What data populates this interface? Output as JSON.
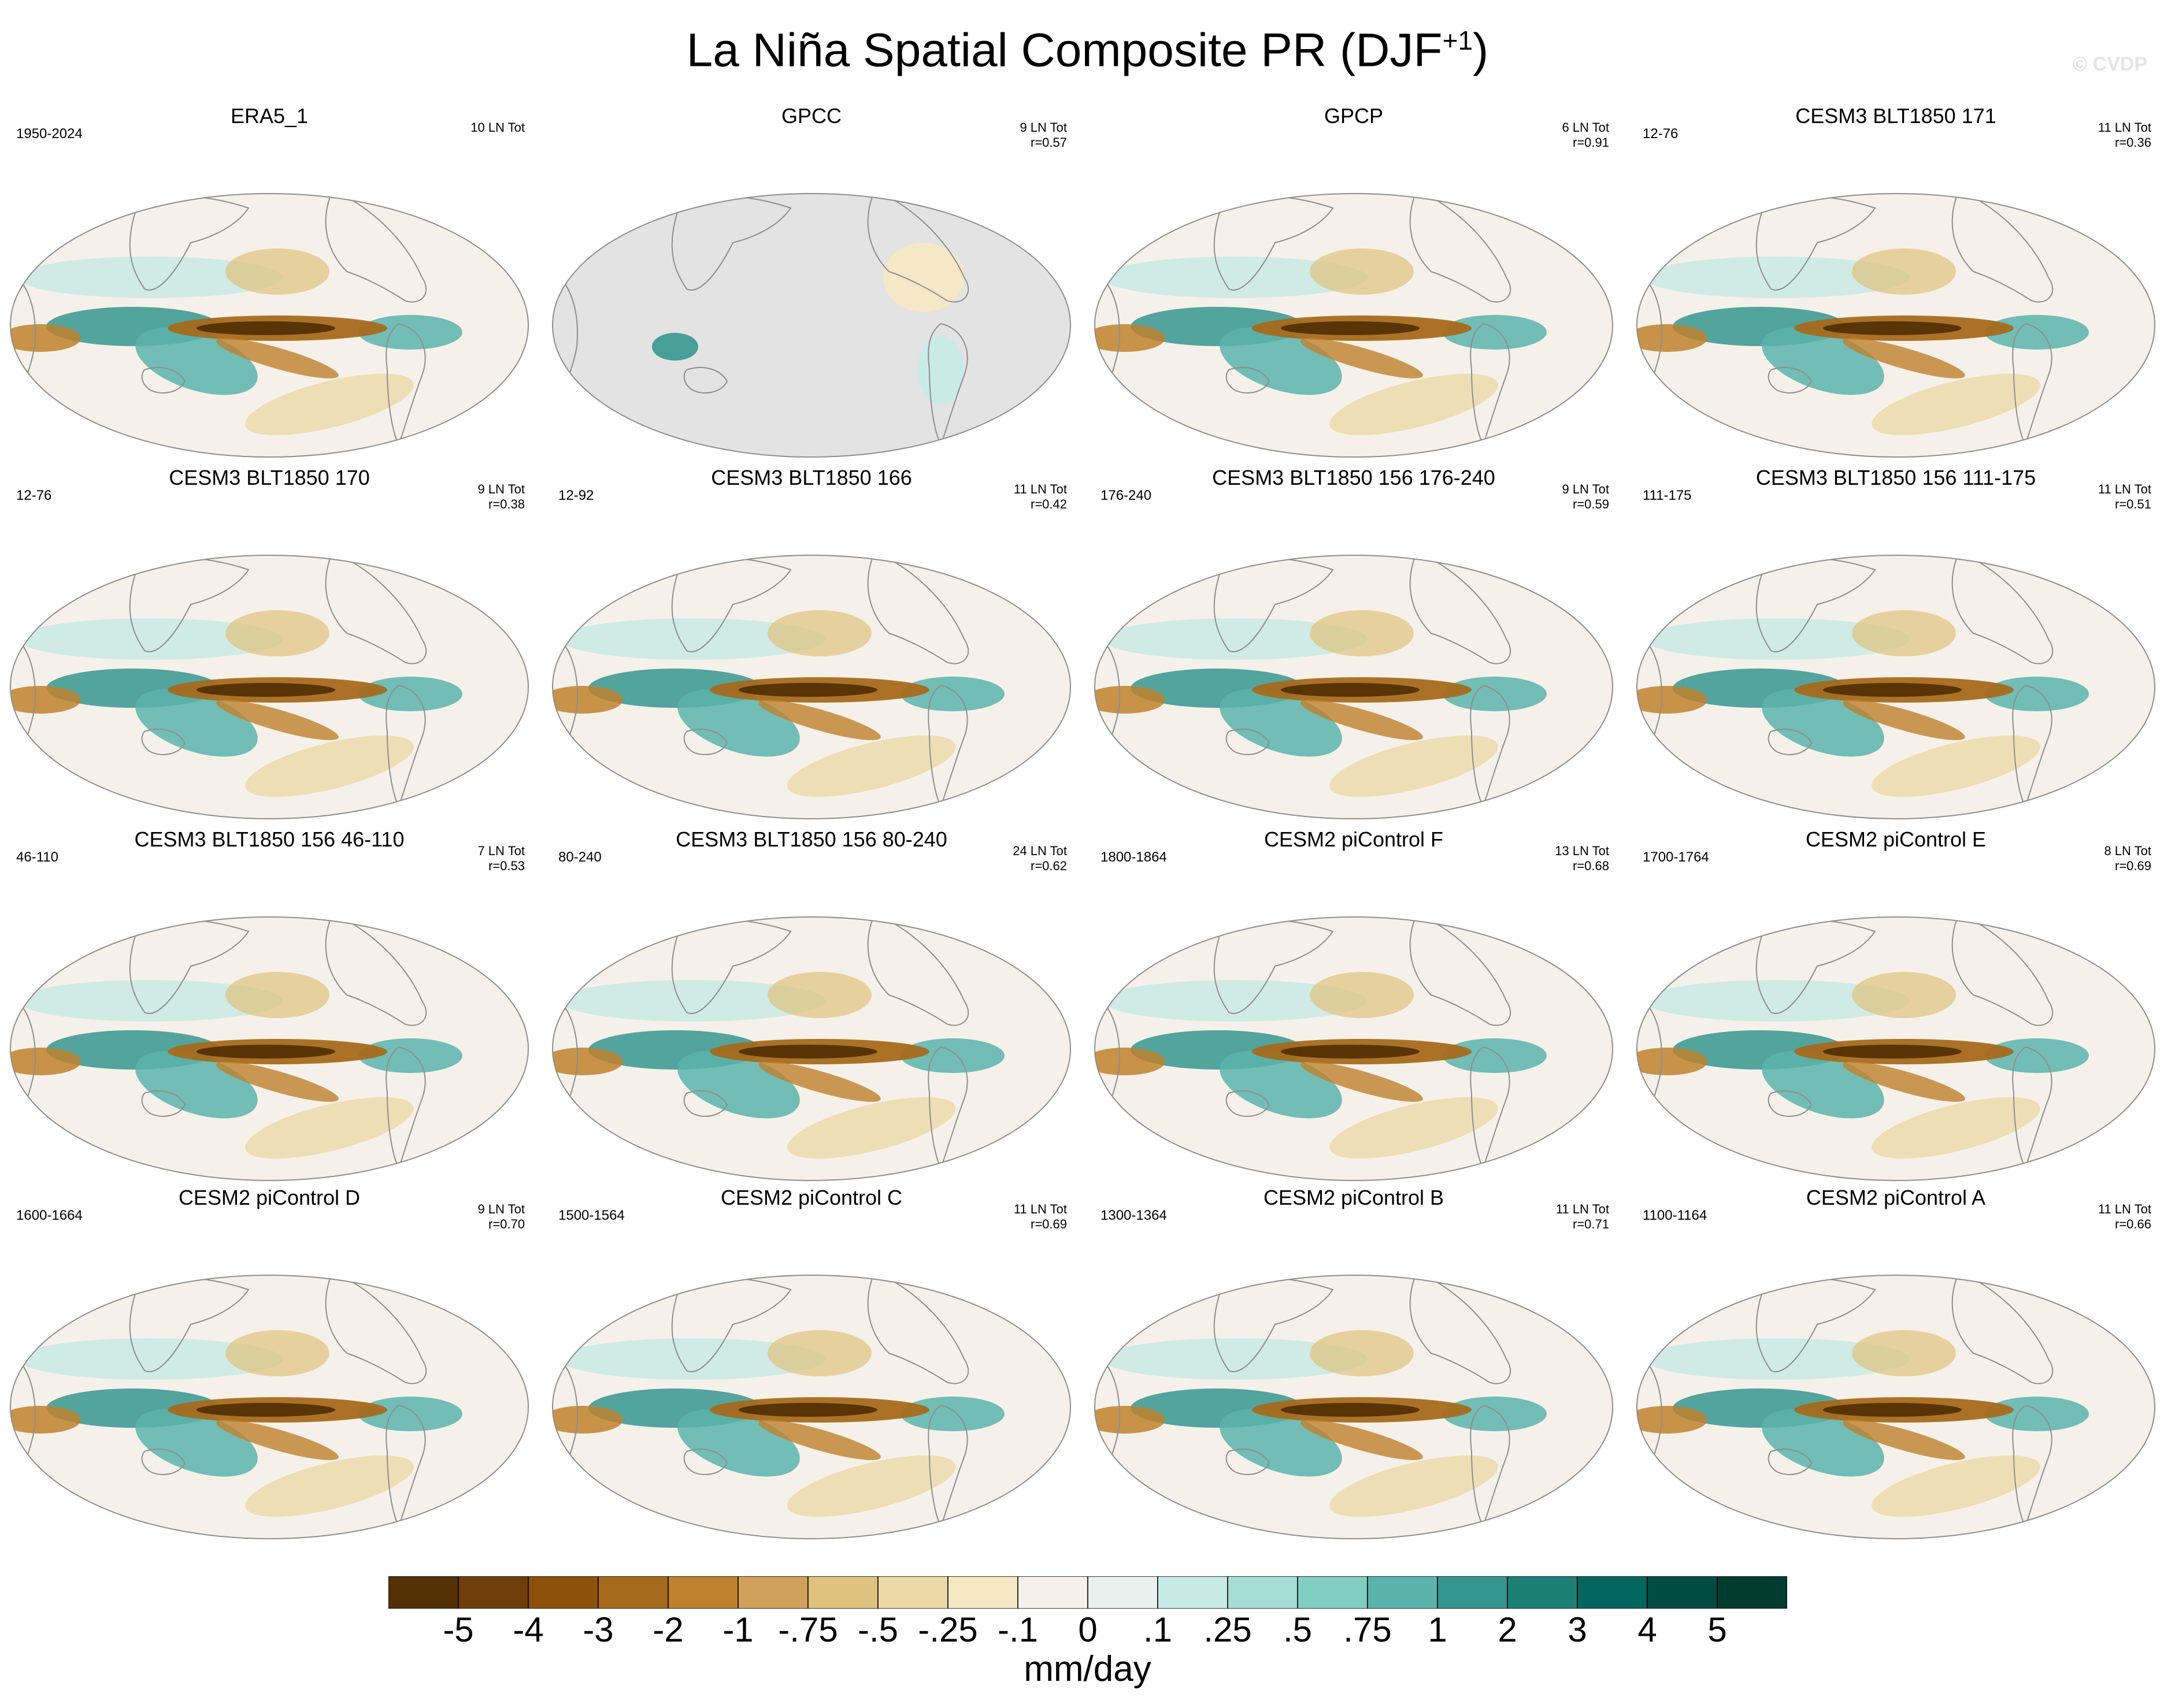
{
  "figure": {
    "title_main": "La Niña Spatial Composite PR (DJF",
    "title_sup": "+1",
    "title_close": ")",
    "watermark": "© CVDP"
  },
  "panels": [
    {
      "name": "ERA5_1",
      "years": "1950-2024",
      "count": "10 LN Tot",
      "r": "",
      "observed": true
    },
    {
      "name": "GPCC",
      "years": "",
      "count": "9 LN Tot",
      "r": "r=0.57",
      "observed": true,
      "land_only": true
    },
    {
      "name": "GPCP",
      "years": "",
      "count": "6 LN Tot",
      "r": "r=0.91",
      "observed": true
    },
    {
      "name": "CESM3 BLT1850 171",
      "years": "12-76",
      "count": "11 LN Tot",
      "r": "r=0.36"
    },
    {
      "name": "CESM3 BLT1850 170",
      "years": "12-76",
      "count": "9 LN Tot",
      "r": "r=0.38"
    },
    {
      "name": "CESM3 BLT1850 166",
      "years": "12-92",
      "count": "11 LN Tot",
      "r": "r=0.42"
    },
    {
      "name": "CESM3 BLT1850 156 176-240",
      "years": "176-240",
      "count": "9 LN Tot",
      "r": "r=0.59"
    },
    {
      "name": "CESM3 BLT1850 156 111-175",
      "years": "111-175",
      "count": "11 LN Tot",
      "r": "r=0.51"
    },
    {
      "name": "CESM3 BLT1850 156 46-110",
      "years": "46-110",
      "count": "7 LN Tot",
      "r": "r=0.53"
    },
    {
      "name": "CESM3 BLT1850 156 80-240",
      "years": "80-240",
      "count": "24 LN Tot",
      "r": "r=0.62"
    },
    {
      "name": "CESM2 piControl F",
      "years": "1800-1864",
      "count": "13 LN Tot",
      "r": "r=0.68"
    },
    {
      "name": "CESM2 piControl E",
      "years": "1700-1764",
      "count": "8 LN Tot",
      "r": "r=0.69"
    },
    {
      "name": "CESM2 piControl D",
      "years": "1600-1664",
      "count": "9 LN Tot",
      "r": "r=0.70"
    },
    {
      "name": "CESM2 piControl C",
      "years": "1500-1564",
      "count": "11 LN Tot",
      "r": "r=0.69"
    },
    {
      "name": "CESM2 piControl B",
      "years": "1300-1364",
      "count": "11 LN Tot",
      "r": "r=0.71"
    },
    {
      "name": "CESM2 piControl A",
      "years": "1100-1164",
      "count": "11 LN Tot",
      "r": "r=0.66"
    }
  ],
  "colorbar": {
    "labels": [
      "-5",
      "-4",
      "-3",
      "-2",
      "-1",
      "-.75",
      "-.5",
      "-.25",
      "-.1",
      "0",
      ".1",
      ".25",
      ".5",
      ".75",
      "1",
      "2",
      "3",
      "4",
      "5"
    ],
    "colors": [
      "#543005",
      "#6f3f0b",
      "#8c510a",
      "#a66a1c",
      "#bf812d",
      "#d1a05a",
      "#dfc27d",
      "#ecd9a8",
      "#f6e8c3",
      "#f5f1ea",
      "#e9f0ee",
      "#c7eae5",
      "#a6ddd4",
      "#80cdc1",
      "#5ab4ac",
      "#35978f",
      "#1c8074",
      "#01665e",
      "#014d44",
      "#003c30"
    ],
    "units": "mm/day"
  }
}
